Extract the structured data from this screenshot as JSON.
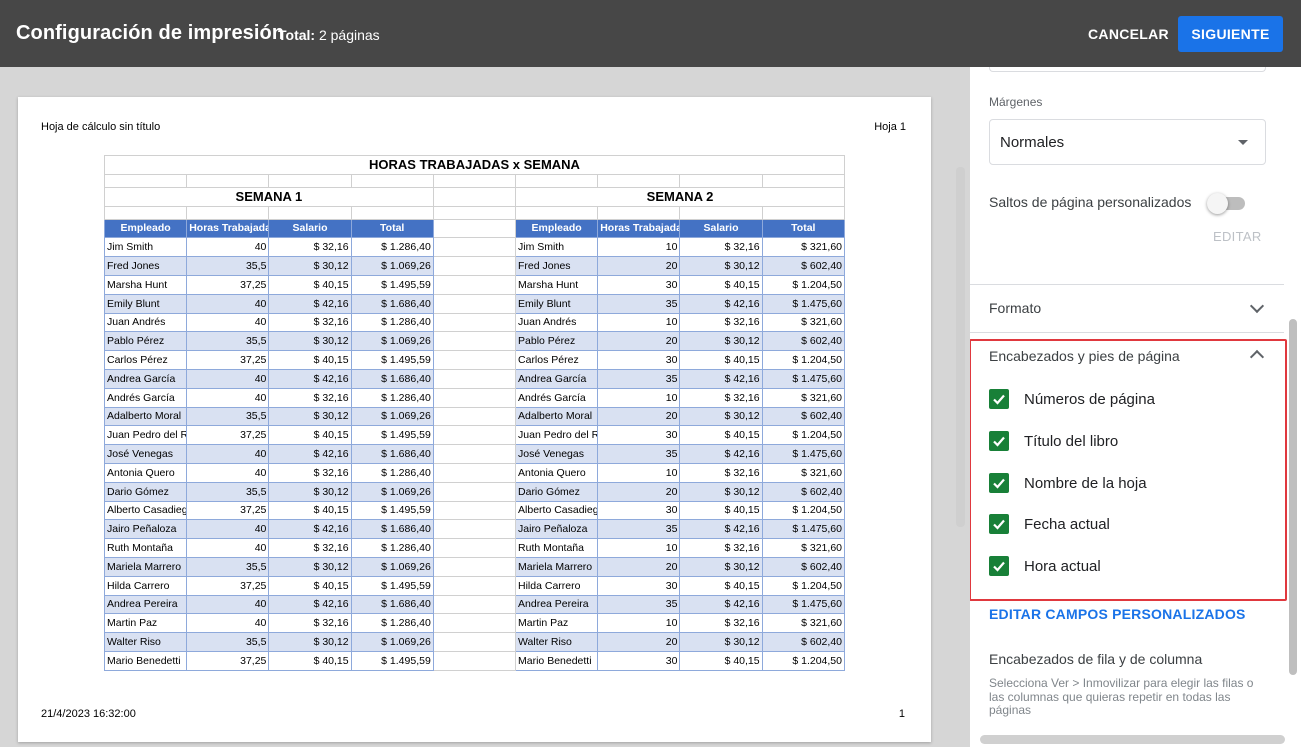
{
  "header": {
    "title": "Configuración de impresión",
    "total_label": "Total:",
    "total_value": "2 páginas",
    "cancel_label": "CANCELAR",
    "next_label": "SIGUIENTE"
  },
  "page": {
    "header_left": "Hoja de cálculo sin título",
    "header_right": "Hoja 1",
    "footer_left": "21/4/2023 16:32:00",
    "footer_right": "1"
  },
  "sheet": {
    "banner": "HORAS TRABAJADAS x SEMANA",
    "week1_title": "SEMANA 1",
    "week2_title": "SEMANA 2",
    "columns": [
      "Empleado",
      "Horas Trabajadas",
      "Salario",
      "Total"
    ],
    "week1_rows": [
      [
        "Jim Smith",
        "40",
        "$ 32,16",
        "$ 1.286,40"
      ],
      [
        "Fred Jones",
        "35,5",
        "$ 30,12",
        "$ 1.069,26"
      ],
      [
        "Marsha Hunt",
        "37,25",
        "$ 40,15",
        "$ 1.495,59"
      ],
      [
        "Emily Blunt",
        "40",
        "$ 42,16",
        "$ 1.686,40"
      ],
      [
        "Juan Andrés",
        "40",
        "$ 32,16",
        "$ 1.286,40"
      ],
      [
        "Pablo Pérez",
        "35,5",
        "$ 30,12",
        "$ 1.069,26"
      ],
      [
        "Carlos Pérez",
        "37,25",
        "$ 40,15",
        "$ 1.495,59"
      ],
      [
        "Andrea García",
        "40",
        "$ 42,16",
        "$ 1.686,40"
      ],
      [
        "Andrés García",
        "40",
        "$ 32,16",
        "$ 1.286,40"
      ],
      [
        "Adalberto Moral",
        "35,5",
        "$ 30,12",
        "$ 1.069,26"
      ],
      [
        "Juan Pedro del R",
        "37,25",
        "$ 40,15",
        "$ 1.495,59"
      ],
      [
        "José Venegas",
        "40",
        "$ 42,16",
        "$ 1.686,40"
      ],
      [
        "Antonia Quero",
        "40",
        "$ 32,16",
        "$ 1.286,40"
      ],
      [
        "Dario Gómez",
        "35,5",
        "$ 30,12",
        "$ 1.069,26"
      ],
      [
        "Alberto Casadieg",
        "37,25",
        "$ 40,15",
        "$ 1.495,59"
      ],
      [
        "Jairo Peñaloza",
        "40",
        "$ 42,16",
        "$ 1.686,40"
      ],
      [
        "Ruth Montaña",
        "40",
        "$ 32,16",
        "$ 1.286,40"
      ],
      [
        "Mariela Marrero",
        "35,5",
        "$ 30,12",
        "$ 1.069,26"
      ],
      [
        "Hilda Carrero",
        "37,25",
        "$ 40,15",
        "$ 1.495,59"
      ],
      [
        "Andrea Pereira",
        "40",
        "$ 42,16",
        "$ 1.686,40"
      ],
      [
        "Martin Paz",
        "40",
        "$ 32,16",
        "$ 1.286,40"
      ],
      [
        "Walter Riso",
        "35,5",
        "$ 30,12",
        "$ 1.069,26"
      ],
      [
        "Mario Benedetti",
        "37,25",
        "$ 40,15",
        "$ 1.495,59"
      ]
    ],
    "week2_rows": [
      [
        "Jim Smith",
        "10",
        "$ 32,16",
        "$ 321,60"
      ],
      [
        "Fred Jones",
        "20",
        "$ 30,12",
        "$ 602,40"
      ],
      [
        "Marsha Hunt",
        "30",
        "$ 40,15",
        "$ 1.204,50"
      ],
      [
        "Emily Blunt",
        "35",
        "$ 42,16",
        "$ 1.475,60"
      ],
      [
        "Juan Andrés",
        "10",
        "$ 32,16",
        "$ 321,60"
      ],
      [
        "Pablo Pérez",
        "20",
        "$ 30,12",
        "$ 602,40"
      ],
      [
        "Carlos Pérez",
        "30",
        "$ 40,15",
        "$ 1.204,50"
      ],
      [
        "Andrea García",
        "35",
        "$ 42,16",
        "$ 1.475,60"
      ],
      [
        "Andrés García",
        "10",
        "$ 32,16",
        "$ 321,60"
      ],
      [
        "Adalberto Moral",
        "20",
        "$ 30,12",
        "$ 602,40"
      ],
      [
        "Juan Pedro del R",
        "30",
        "$ 40,15",
        "$ 1.204,50"
      ],
      [
        "José Venegas",
        "35",
        "$ 42,16",
        "$ 1.475,60"
      ],
      [
        "Antonia Quero",
        "10",
        "$ 32,16",
        "$ 321,60"
      ],
      [
        "Dario Gómez",
        "20",
        "$ 30,12",
        "$ 602,40"
      ],
      [
        "Alberto Casadieg",
        "30",
        "$ 40,15",
        "$ 1.204,50"
      ],
      [
        "Jairo Peñaloza",
        "35",
        "$ 42,16",
        "$ 1.475,60"
      ],
      [
        "Ruth Montaña",
        "10",
        "$ 32,16",
        "$ 321,60"
      ],
      [
        "Mariela Marrero",
        "20",
        "$ 30,12",
        "$ 602,40"
      ],
      [
        "Hilda Carrero",
        "30",
        "$ 40,15",
        "$ 1.204,50"
      ],
      [
        "Andrea Pereira",
        "35",
        "$ 42,16",
        "$ 1.475,60"
      ],
      [
        "Martin Paz",
        "10",
        "$ 32,16",
        "$ 321,60"
      ],
      [
        "Walter Riso",
        "20",
        "$ 30,12",
        "$ 602,40"
      ],
      [
        "Mario Benedetti",
        "30",
        "$ 40,15",
        "$ 1.204,50"
      ]
    ]
  },
  "panel": {
    "margins_label": "Márgenes",
    "margins_value": "Normales",
    "custom_breaks_label": "Saltos de página personalizados",
    "custom_breaks_on": false,
    "edit_label": "EDITAR",
    "format_label": "Formato",
    "headers_footers_label": "Encabezados y pies de página",
    "options": [
      {
        "label": "Números de página",
        "checked": true
      },
      {
        "label": "Título del libro",
        "checked": true
      },
      {
        "label": "Nombre de la hoja",
        "checked": true
      },
      {
        "label": "Fecha actual",
        "checked": true
      },
      {
        "label": "Hora actual",
        "checked": true
      }
    ],
    "custom_fields_label": "EDITAR CAMPOS PERSONALIZADOS",
    "row_col_headers_label": "Encabezados de fila y de columna",
    "row_col_help": "Selecciona Ver > Inmovilizar para elegir las filas o las columnas que quieras repetir en todas las páginas",
    "checkbox_color": "#188038",
    "accent_color": "#1a73e8",
    "highlight_color": "#e0383e"
  }
}
